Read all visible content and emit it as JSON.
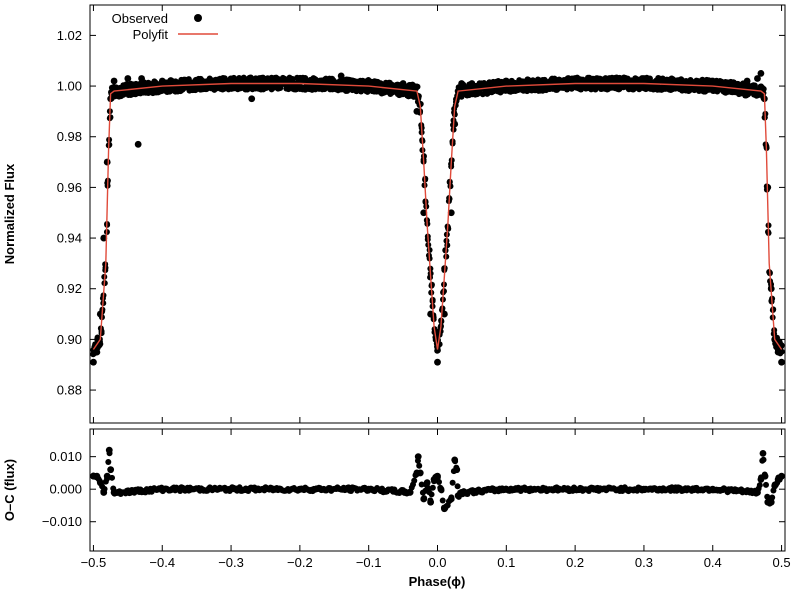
{
  "chart_data": [
    {
      "type": "scatter",
      "panel": "main",
      "xlabel": "",
      "ylabel": "Normalized Flux",
      "xlim": [
        -0.505,
        0.505
      ],
      "ylim": [
        0.867,
        1.032
      ],
      "yticks": [
        "1.02",
        "1.00",
        "0.98",
        "0.96",
        "0.94",
        "0.92",
        "0.90",
        "0.88"
      ],
      "ytick_values": [
        1.02,
        1.0,
        0.98,
        0.96,
        0.94,
        0.92,
        0.9,
        0.88
      ],
      "grid": false,
      "legend": {
        "position": "top-left",
        "entries": [
          {
            "label": "Observed",
            "marker": "filled-circle",
            "color": "#000000"
          },
          {
            "label": "Polyfit",
            "marker": "line",
            "color": "#e04a3a"
          }
        ]
      },
      "series": [
        {
          "name": "Observed",
          "color": "#000000",
          "x": [
            -0.5,
            -0.495,
            -0.49,
            -0.485,
            -0.48,
            -0.475,
            -0.47,
            -0.45,
            -0.43,
            -0.4,
            -0.35,
            -0.3,
            -0.27,
            -0.25,
            -0.2,
            -0.14,
            -0.1,
            -0.05,
            -0.035,
            -0.03,
            -0.02,
            -0.01,
            0.0,
            0.01,
            0.02,
            0.025,
            0.03,
            0.035,
            0.05,
            0.1,
            0.15,
            0.19,
            0.2,
            0.25,
            0.3,
            0.35,
            0.4,
            0.45,
            0.465,
            0.47,
            0.475,
            0.48,
            0.485,
            0.49,
            0.495,
            0.5,
            -0.435
          ],
          "y": [
            0.891,
            0.895,
            0.91,
            0.94,
            0.97,
            0.995,
            1.002,
            1.003,
            1.003,
            1.002,
            1.002,
            1.002,
            0.995,
            1.002,
            1.002,
            1.004,
            1.001,
            1.001,
            1.0,
            0.99,
            0.95,
            0.91,
            0.891,
            0.91,
            0.95,
            0.985,
            0.998,
            1.001,
            1.001,
            1.002,
            1.002,
            1.003,
            1.003,
            1.003,
            1.003,
            1.002,
            1.002,
            1.002,
            1.003,
            1.005,
            0.995,
            0.96,
            0.92,
            0.9,
            0.895,
            0.891,
            0.977
          ]
        },
        {
          "name": "Polyfit",
          "color": "#e04a3a",
          "x": [
            -0.5,
            -0.49,
            -0.482,
            -0.478,
            -0.475,
            -0.47,
            -0.4,
            -0.3,
            -0.2,
            -0.1,
            -0.03,
            -0.025,
            -0.02,
            -0.015,
            -0.01,
            -0.005,
            0.0,
            0.005,
            0.01,
            0.015,
            0.02,
            0.025,
            0.03,
            0.1,
            0.2,
            0.3,
            0.4,
            0.47,
            0.475,
            0.478,
            0.482,
            0.49,
            0.5
          ],
          "y": [
            0.896,
            0.9,
            0.93,
            0.975,
            0.997,
            0.998,
            1.0,
            1.001,
            1.001,
            1.0,
            0.998,
            0.992,
            0.97,
            0.945,
            0.925,
            0.905,
            0.896,
            0.905,
            0.925,
            0.945,
            0.97,
            0.992,
            0.998,
            1.0,
            1.001,
            1.001,
            1.0,
            0.998,
            0.997,
            0.975,
            0.93,
            0.9,
            0.896
          ]
        }
      ]
    },
    {
      "type": "scatter",
      "panel": "residuals",
      "xlabel": "Phase(ϕ)",
      "ylabel": "O–C (flux)",
      "xlim": [
        -0.505,
        0.505
      ],
      "ylim": [
        -0.019,
        0.0185
      ],
      "xticks": [
        "−0.5",
        "−0.4",
        "−0.3",
        "−0.2",
        "−0.1",
        "0.0",
        "0.1",
        "0.2",
        "0.3",
        "0.4",
        "0.5"
      ],
      "xtick_values": [
        -0.5,
        -0.4,
        -0.3,
        -0.2,
        -0.1,
        0.0,
        0.1,
        0.2,
        0.3,
        0.4,
        0.5
      ],
      "yticks": [
        "0.010",
        "0.000",
        "−0.010"
      ],
      "ytick_values": [
        0.01,
        0.0,
        -0.01
      ],
      "grid": false,
      "series": [
        {
          "name": "",
          "color": "#000000",
          "x": [
            -0.5,
            -0.495,
            -0.49,
            -0.485,
            -0.48,
            -0.477,
            -0.475,
            -0.47,
            -0.465,
            -0.4,
            -0.3,
            -0.2,
            -0.1,
            -0.04,
            -0.03,
            -0.028,
            -0.025,
            -0.02,
            -0.015,
            -0.01,
            -0.005,
            0.0,
            0.005,
            0.01,
            0.02,
            0.025,
            0.028,
            0.03,
            0.035,
            0.1,
            0.2,
            0.3,
            0.4,
            0.465,
            0.47,
            0.473,
            0.476,
            0.48,
            0.485,
            0.49,
            0.495,
            0.5
          ],
          "y": [
            0.004,
            0.004,
            0.002,
            -0.001,
            0.004,
            0.012,
            0.006,
            -0.001,
            -0.001,
            0.0,
            0.0,
            0.0,
            0.0,
            -0.001,
            0.005,
            0.01,
            0.005,
            -0.003,
            0.002,
            -0.004,
            0.003,
            0.004,
            0.0,
            -0.006,
            -0.003,
            0.009,
            0.006,
            -0.002,
            -0.001,
            0.0,
            0.0,
            0.0,
            0.0,
            -0.001,
            0.003,
            0.011,
            0.004,
            -0.004,
            -0.004,
            0.001,
            0.003,
            0.004
          ]
        }
      ]
    }
  ]
}
